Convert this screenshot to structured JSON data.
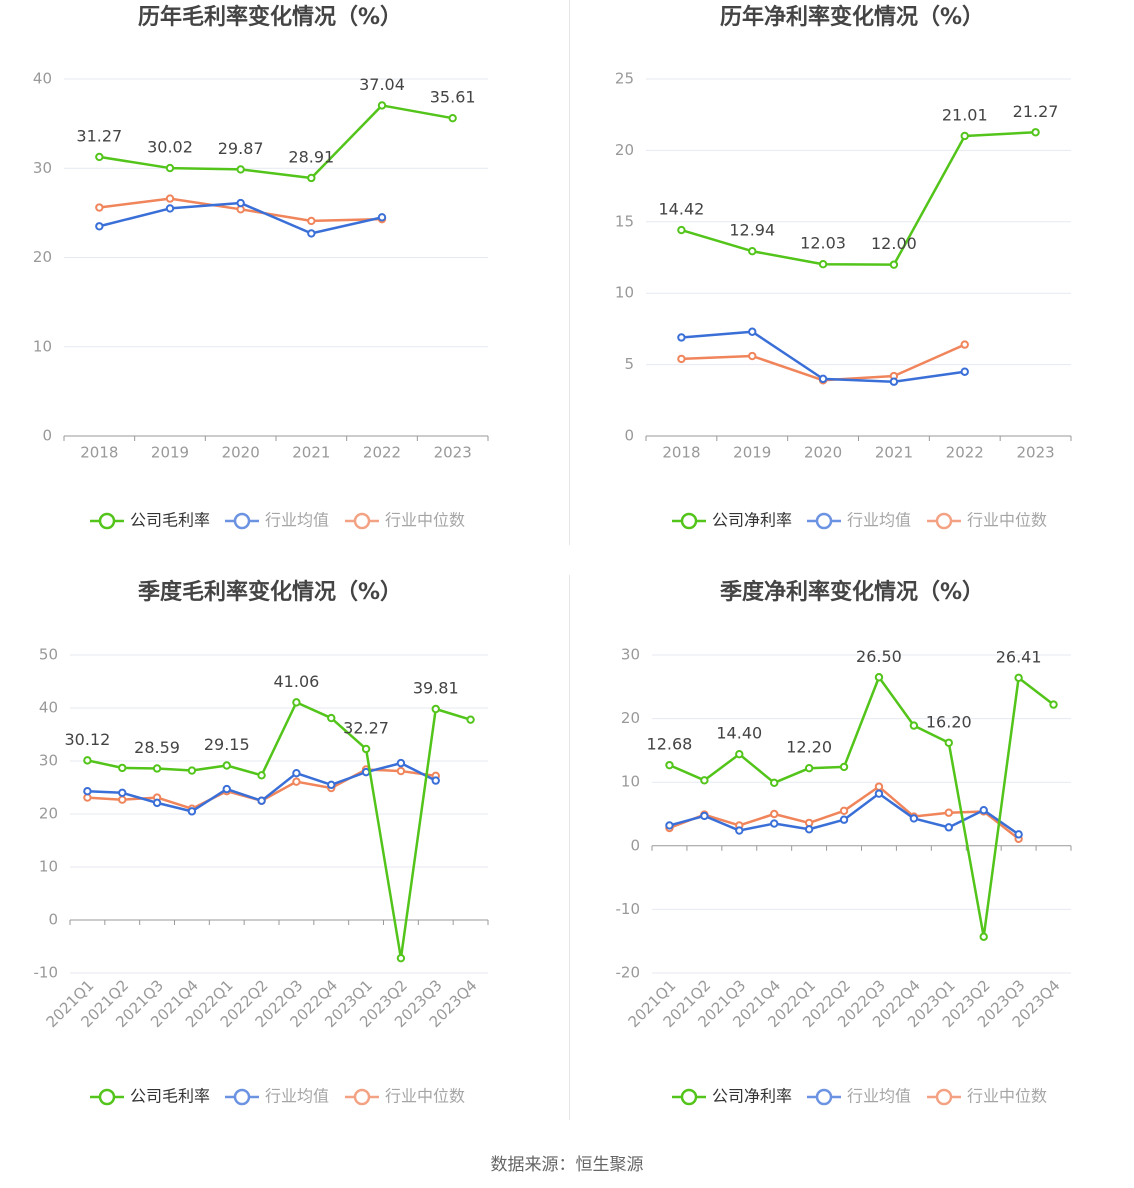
{
  "source_text": "数据来源：恒生聚源",
  "colors": {
    "company": "#52c41a",
    "avg": "#3a6fd8",
    "median": "#f0845a",
    "axis": "#999999",
    "grid": "#e6e9f2",
    "label": "#444444",
    "title": "#444444"
  },
  "chart_data": [
    {
      "type": "line",
      "title": "历年毛利率变化情况（%）",
      "categories": [
        "2018",
        "2019",
        "2020",
        "2021",
        "2022",
        "2023"
      ],
      "ylim": [
        0,
        40
      ],
      "yticks": [
        0,
        10,
        20,
        30,
        40
      ],
      "grid": true,
      "legend_position": "bottom",
      "series": [
        {
          "name": "公司毛利率",
          "values": [
            31.27,
            30.02,
            29.87,
            28.91,
            37.04,
            35.61
          ],
          "labels": [
            "31.27",
            "30.02",
            "29.87",
            "28.91",
            "37.04",
            "35.61"
          ]
        },
        {
          "name": "行业均值",
          "values": [
            23.5,
            25.5,
            26.1,
            22.7,
            24.5,
            null
          ]
        },
        {
          "name": "行业中位数",
          "values": [
            25.6,
            26.6,
            25.4,
            24.1,
            24.3,
            null
          ]
        }
      ]
    },
    {
      "type": "line",
      "title": "历年净利率变化情况（%）",
      "categories": [
        "2018",
        "2019",
        "2020",
        "2021",
        "2022",
        "2023"
      ],
      "ylim": [
        0,
        25
      ],
      "yticks": [
        0,
        5,
        10,
        15,
        20,
        25
      ],
      "grid": true,
      "legend_position": "bottom",
      "series": [
        {
          "name": "公司净利率",
          "values": [
            14.42,
            12.94,
            12.03,
            12.0,
            21.01,
            21.27
          ],
          "labels": [
            "14.42",
            "12.94",
            "12.03",
            "12.00",
            "21.01",
            "21.27"
          ]
        },
        {
          "name": "行业均值",
          "values": [
            6.9,
            7.3,
            4.0,
            3.8,
            4.5,
            null
          ]
        },
        {
          "name": "行业中位数",
          "values": [
            5.4,
            5.6,
            3.9,
            4.2,
            6.4,
            null
          ]
        }
      ]
    },
    {
      "type": "line",
      "title": "季度毛利率变化情况（%）",
      "categories": [
        "2021Q1",
        "2021Q2",
        "2021Q3",
        "2021Q4",
        "2022Q1",
        "2022Q2",
        "2022Q3",
        "2022Q4",
        "2023Q1",
        "2023Q2",
        "2023Q3",
        "2023Q4"
      ],
      "ylim": [
        -10,
        50
      ],
      "yticks": [
        -10,
        0,
        10,
        20,
        30,
        40,
        50
      ],
      "grid": true,
      "legend_position": "bottom",
      "series": [
        {
          "name": "公司毛利率",
          "values": [
            30.12,
            28.7,
            28.59,
            28.2,
            29.15,
            27.3,
            41.06,
            38.1,
            32.27,
            -7.2,
            39.81,
            37.8
          ],
          "labels": [
            "30.12",
            "",
            "28.59",
            "",
            "29.15",
            "",
            "41.06",
            "",
            "32.27",
            "",
            "39.81",
            ""
          ]
        },
        {
          "name": "行业均值",
          "values": [
            24.3,
            24.0,
            22.1,
            20.5,
            24.7,
            22.5,
            27.7,
            25.5,
            27.9,
            29.6,
            26.3,
            null
          ]
        },
        {
          "name": "行业中位数",
          "values": [
            23.1,
            22.7,
            23.1,
            21.0,
            24.3,
            22.5,
            26.1,
            24.9,
            28.4,
            28.1,
            27.2,
            null
          ]
        }
      ]
    },
    {
      "type": "line",
      "title": "季度净利率变化情况（%）",
      "categories": [
        "2021Q1",
        "2021Q2",
        "2021Q3",
        "2021Q4",
        "2022Q1",
        "2022Q2",
        "2022Q3",
        "2022Q4",
        "2023Q1",
        "2023Q2",
        "2023Q3",
        "2023Q4"
      ],
      "ylim": [
        -20,
        30
      ],
      "yticks": [
        -20,
        -10,
        0,
        10,
        20,
        30
      ],
      "grid": true,
      "legend_position": "bottom",
      "series": [
        {
          "name": "公司净利率",
          "values": [
            12.68,
            10.3,
            14.4,
            9.9,
            12.2,
            12.4,
            26.5,
            18.9,
            16.2,
            -14.3,
            26.41,
            22.2
          ],
          "labels": [
            "12.68",
            "",
            "14.40",
            "",
            "12.20",
            "",
            "26.50",
            "",
            "16.20",
            "",
            "26.41",
            ""
          ]
        },
        {
          "name": "行业均值",
          "values": [
            3.2,
            4.7,
            2.4,
            3.5,
            2.6,
            4.1,
            8.2,
            4.3,
            2.9,
            5.6,
            1.8,
            null
          ]
        },
        {
          "name": "行业中位数",
          "values": [
            2.8,
            4.9,
            3.2,
            5.0,
            3.6,
            5.5,
            9.3,
            4.6,
            5.2,
            5.4,
            1.1,
            null
          ]
        }
      ]
    }
  ]
}
